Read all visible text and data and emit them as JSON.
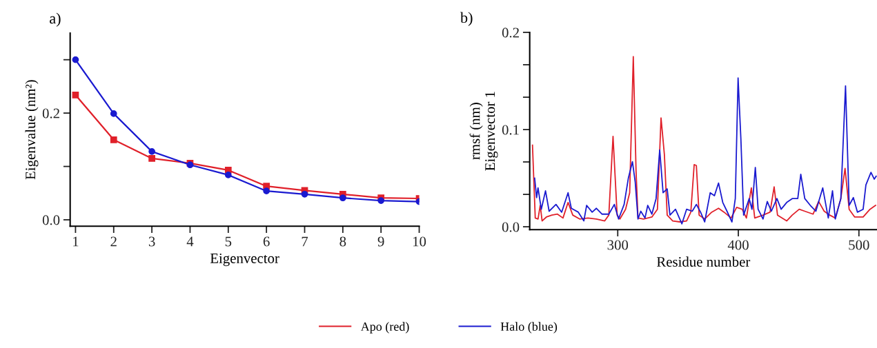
{
  "chart_data": [
    {
      "type": "line",
      "title": "a)",
      "xlabel": "Eigenvector",
      "ylabel": "Eigenvalue (nm²)",
      "x": [
        1,
        2,
        3,
        4,
        5,
        6,
        7,
        8,
        9,
        10
      ],
      "xlim": [
        0.86,
        10
      ],
      "xticks": [
        1,
        2,
        3,
        4,
        5,
        6,
        7,
        8,
        9,
        10
      ],
      "ylim": [
        -0.012,
        0.35
      ],
      "yticks": [
        {
          "value": 0,
          "label": "0.0"
        },
        {
          "value": 0.1,
          "label": null
        },
        {
          "value": 0.2,
          "label": "0.2"
        },
        {
          "value": 0.3,
          "label": null
        }
      ],
      "grid": false,
      "legend": "bottom",
      "line_style": "solid",
      "series": [
        {
          "name": "Apo (red)",
          "color": "#e0202a",
          "marker": "square",
          "values": [
            0.234,
            0.15,
            0.115,
            0.106,
            0.093,
            0.063,
            0.055,
            0.048,
            0.041,
            0.04
          ]
        },
        {
          "name": "Halo (blue)",
          "color": "#1a1ad0",
          "marker": "circle",
          "values": [
            0.3,
            0.199,
            0.128,
            0.103,
            0.084,
            0.054,
            0.048,
            0.041,
            0.036,
            0.034
          ]
        }
      ]
    },
    {
      "type": "line",
      "title": "b)",
      "xlabel": "Residue number",
      "ylabel": "rmsf (nm)\nEigenvector 1",
      "xlim": [
        227,
        515
      ],
      "xticks": [
        300,
        400,
        500
      ],
      "ylim": [
        -0.003,
        0.2
      ],
      "yticks": [
        {
          "value": 0,
          "label": "0.0"
        },
        {
          "value": 0.0333,
          "label": null
        },
        {
          "value": 0.0667,
          "label": null
        },
        {
          "value": 0.1,
          "label": "0.1"
        },
        {
          "value": 0.1333,
          "label": null
        },
        {
          "value": 0.1667,
          "label": null
        },
        {
          "value": 0.2,
          "label": "0.2"
        }
      ],
      "grid": false,
      "legend": "bottom",
      "line_style": "solid",
      "marker": "none",
      "series": [
        {
          "name": "Apo (red)",
          "color": "#e0202a",
          "x": [
            229.3,
            231.6,
            233.9,
            235.7,
            237.3,
            240.8,
            245.4,
            250,
            254.6,
            258.8,
            262.7,
            268.4,
            275.3,
            282.3,
            289.2,
            292.6,
            296.1,
            299.5,
            301.8,
            306.5,
            309.9,
            312.9,
            315.2,
            316.8,
            321.4,
            328.3,
            332.9,
            335.9,
            338.7,
            341,
            345.6,
            351.4,
            357.1,
            360.6,
            363.4,
            365.2,
            367.5,
            372.1,
            377.9,
            383.6,
            388.2,
            394,
            398.6,
            403.2,
            406.7,
            410.8,
            413.6,
            420.5,
            426.3,
            429.7,
            432.5,
            440.1,
            444.7,
            450.5,
            455.1,
            462,
            466.6,
            471.2,
            475.8,
            480.4,
            485,
            488.5,
            491.9,
            496.5,
            503.5,
            509.2,
            513.8
          ],
          "values": [
            0.084,
            0.009,
            0.008,
            0.022,
            0.006,
            0.01,
            0.012,
            0.013,
            0.009,
            0.025,
            0.012,
            0.008,
            0.009,
            0.008,
            0.006,
            0.012,
            0.093,
            0.012,
            0.008,
            0.018,
            0.035,
            0.175,
            0.057,
            0.009,
            0.008,
            0.01,
            0.018,
            0.112,
            0.074,
            0.012,
            0.006,
            0.005,
            0.006,
            0.015,
            0.064,
            0.063,
            0.012,
            0.008,
            0.015,
            0.019,
            0.015,
            0.009,
            0.02,
            0.018,
            0.009,
            0.04,
            0.009,
            0.012,
            0.015,
            0.041,
            0.012,
            0.006,
            0.012,
            0.018,
            0.016,
            0.013,
            0.026,
            0.016,
            0.012,
            0.009,
            0.029,
            0.06,
            0.018,
            0.01,
            0.01,
            0.018,
            0.022
          ]
        },
        {
          "name": "Halo (blue)",
          "color": "#1a1ad0",
          "x": [
            231.1,
            232.7,
            233.9,
            236.6,
            240.1,
            243.1,
            248.8,
            253.5,
            258.8,
            261.5,
            267.3,
            271.9,
            274.2,
            278.8,
            282.3,
            286.9,
            292.6,
            297.2,
            300.7,
            305.3,
            308.8,
            312.2,
            314.5,
            316.8,
            319.1,
            322.6,
            324.9,
            328.3,
            331.8,
            334.8,
            337.6,
            341,
            343.3,
            347.9,
            353.2,
            357.1,
            361.8,
            365.2,
            368.7,
            372.1,
            376.7,
            380.2,
            383.6,
            387.1,
            390.6,
            394.7,
            397.5,
            399.8,
            402.1,
            404.4,
            409,
            411.3,
            414.1,
            416.4,
            420.5,
            424,
            427.4,
            432,
            435.5,
            440.1,
            444.7,
            449.3,
            451.8,
            455.1,
            459.7,
            464.3,
            470,
            474.6,
            478.1,
            480.4,
            485,
            488.9,
            491.9,
            495.4,
            498.8,
            503.5,
            505.8,
            510,
            512.7,
            514.3
          ],
          "values": [
            0.05,
            0.03,
            0.04,
            0.018,
            0.037,
            0.016,
            0.023,
            0.015,
            0.035,
            0.019,
            0.015,
            0.006,
            0.022,
            0.015,
            0.019,
            0.013,
            0.013,
            0.023,
            0.008,
            0.023,
            0.05,
            0.067,
            0.046,
            0.008,
            0.016,
            0.009,
            0.022,
            0.013,
            0.029,
            0.079,
            0.035,
            0.039,
            0.012,
            0.018,
            0.003,
            0.018,
            0.016,
            0.023,
            0.015,
            0.005,
            0.035,
            0.032,
            0.045,
            0.025,
            0.016,
            0.005,
            0.029,
            0.153,
            0.091,
            0.012,
            0.029,
            0.018,
            0.061,
            0.018,
            0.008,
            0.026,
            0.016,
            0.029,
            0.018,
            0.025,
            0.029,
            0.029,
            0.054,
            0.029,
            0.022,
            0.016,
            0.04,
            0.009,
            0.037,
            0.008,
            0.029,
            0.145,
            0.022,
            0.03,
            0.015,
            0.018,
            0.043,
            0.056,
            0.049,
            0.052
          ]
        }
      ]
    }
  ]
}
